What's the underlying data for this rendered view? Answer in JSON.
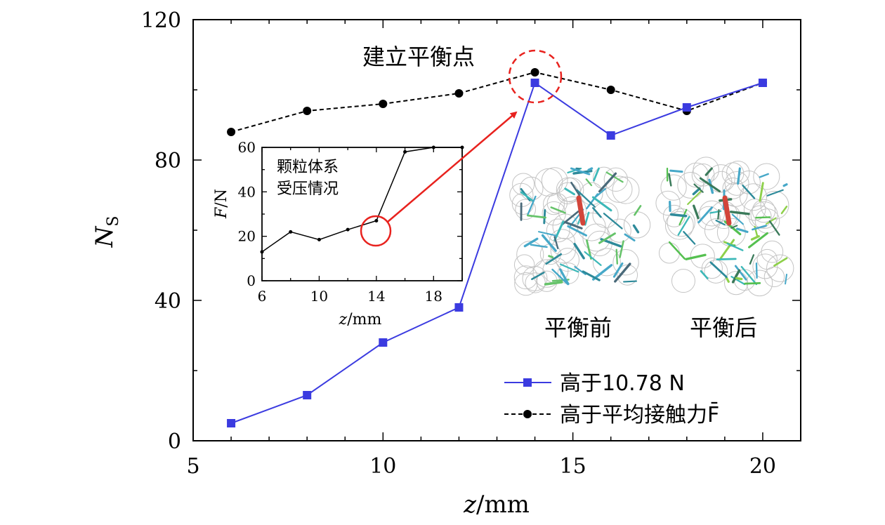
{
  "chart_data": [
    {
      "type": "line",
      "xlabel": "z/mm",
      "ylabel": "N_S",
      "xlim": [
        5,
        21
      ],
      "ylim": [
        0,
        120
      ],
      "x_ticks": [
        5,
        10,
        15,
        20
      ],
      "y_ticks": [
        0,
        40,
        80,
        120
      ],
      "series": [
        {
          "name": "高于10.78 N",
          "color": "#3b3be0",
          "marker": "square",
          "style": "solid",
          "x": [
            6,
            8,
            10,
            12,
            14,
            16,
            18,
            20
          ],
          "y": [
            5,
            13,
            28,
            38,
            102,
            87,
            95,
            102
          ]
        },
        {
          "name": "高于平均接触力F̄",
          "color": "#000000",
          "marker": "circle",
          "style": "dashed",
          "x": [
            6,
            8,
            10,
            12,
            14,
            16,
            18,
            20
          ],
          "y": [
            88,
            94,
            96,
            99,
            105,
            100,
            94,
            102
          ]
        }
      ],
      "legend_position": "bottom-right",
      "annotations": {
        "balance_point": "建立平衡点",
        "before": "平衡前",
        "after": "平衡后"
      }
    },
    {
      "type": "line",
      "title": "颗粒体系受压情况",
      "title_lines": [
        "颗粒体系",
        "受压情况"
      ],
      "xlabel": "z/mm",
      "ylabel": "F/N",
      "xlim": [
        6,
        20
      ],
      "ylim": [
        0,
        60
      ],
      "x_ticks": [
        6,
        10,
        14,
        18
      ],
      "y_ticks": [
        0,
        20,
        40,
        60
      ],
      "series": [
        {
          "color": "#000000",
          "x": [
            6,
            8,
            10,
            12,
            14,
            16,
            18,
            20
          ],
          "y": [
            13,
            22,
            18.5,
            23,
            27,
            58,
            60,
            60
          ]
        }
      ],
      "highlight_point": {
        "x": 14,
        "y": 27
      }
    }
  ],
  "colors": {
    "blue_series": "#3b3be0",
    "black_series": "#000000",
    "highlight_red": "#e8221e"
  }
}
